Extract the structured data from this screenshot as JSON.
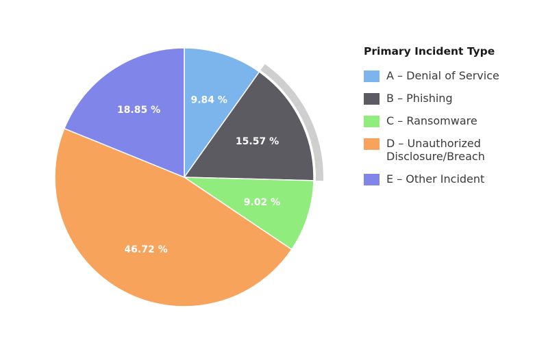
{
  "chart_data": {
    "type": "pie",
    "legend_title": "Primary Incident Type",
    "legend_position": "right",
    "highlighted_slice": "B - Phishing",
    "slices": [
      {
        "label": "A - Denial of Service",
        "legend_text": "A – Denial of Service",
        "value": 9.84,
        "display": "9.84 %",
        "color": "#7cb4ec"
      },
      {
        "label": "B - Phishing",
        "legend_text": "B – Phishing",
        "value": 15.57,
        "display": "15.57 %",
        "color": "#5c5b61"
      },
      {
        "label": "C - Ransomware",
        "legend_text": "C – Ransomware",
        "value": 9.02,
        "display": "9.02 %",
        "color": "#90ec7d"
      },
      {
        "label": "D - Unauthorized Disclosure/Breach",
        "legend_text": "D – Unauthorized\nDisclosure/Breach",
        "value": 46.72,
        "display": "46.72 %",
        "color": "#f7a35c"
      },
      {
        "label": "E - Other Incident",
        "legend_text": "E – Other Incident",
        "value": 18.85,
        "display": "18.85 %",
        "color": "#8085e9"
      }
    ]
  }
}
